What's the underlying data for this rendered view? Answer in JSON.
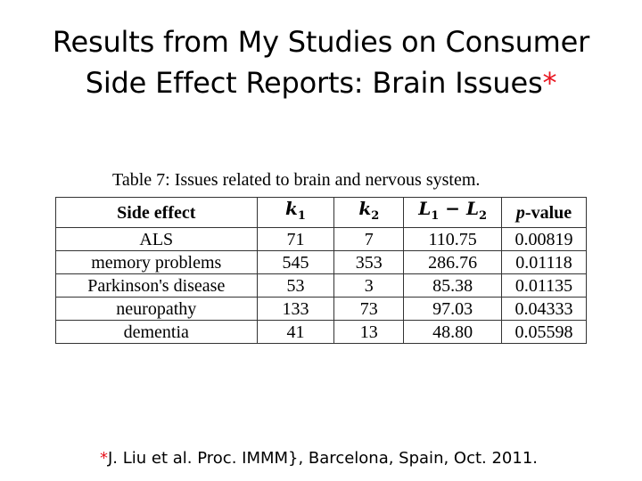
{
  "slide": {
    "title_line1": "Results from My Studies on Consumer",
    "title_line2": "Side Effect Reports: Brain Issues",
    "title_mark": "*"
  },
  "table": {
    "caption": "Table 7: Issues related to brain and nervous system.",
    "headers": {
      "side_effect": "Side effect",
      "k1_base": "k",
      "k1_sub": "1",
      "k2_base": "k",
      "k2_sub": "2",
      "l_a_base": "L",
      "l_a_sub": "1",
      "l_minus": " − ",
      "l_b_base": "L",
      "l_b_sub": "2",
      "p_italic": "p",
      "p_rest": "-value"
    },
    "rows": [
      [
        "ALS",
        "71",
        "7",
        "110.75",
        "0.00819"
      ],
      [
        "memory problems",
        "545",
        "353",
        "286.76",
        "0.01118"
      ],
      [
        "Parkinson's disease",
        "53",
        "3",
        "85.38",
        "0.01135"
      ],
      [
        "neuropathy",
        "133",
        "73",
        "97.03",
        "0.04333"
      ],
      [
        "dementia",
        "41",
        "13",
        "48.80",
        "0.05598"
      ]
    ]
  },
  "footnote": {
    "mark": "*",
    "text": "J. Liu et al. Proc. IMMM}, Barcelona, Spain, Oct. 2011."
  },
  "colors": {
    "accent_red": "#e8141e",
    "text": "#000000",
    "table_border": "#333333"
  }
}
